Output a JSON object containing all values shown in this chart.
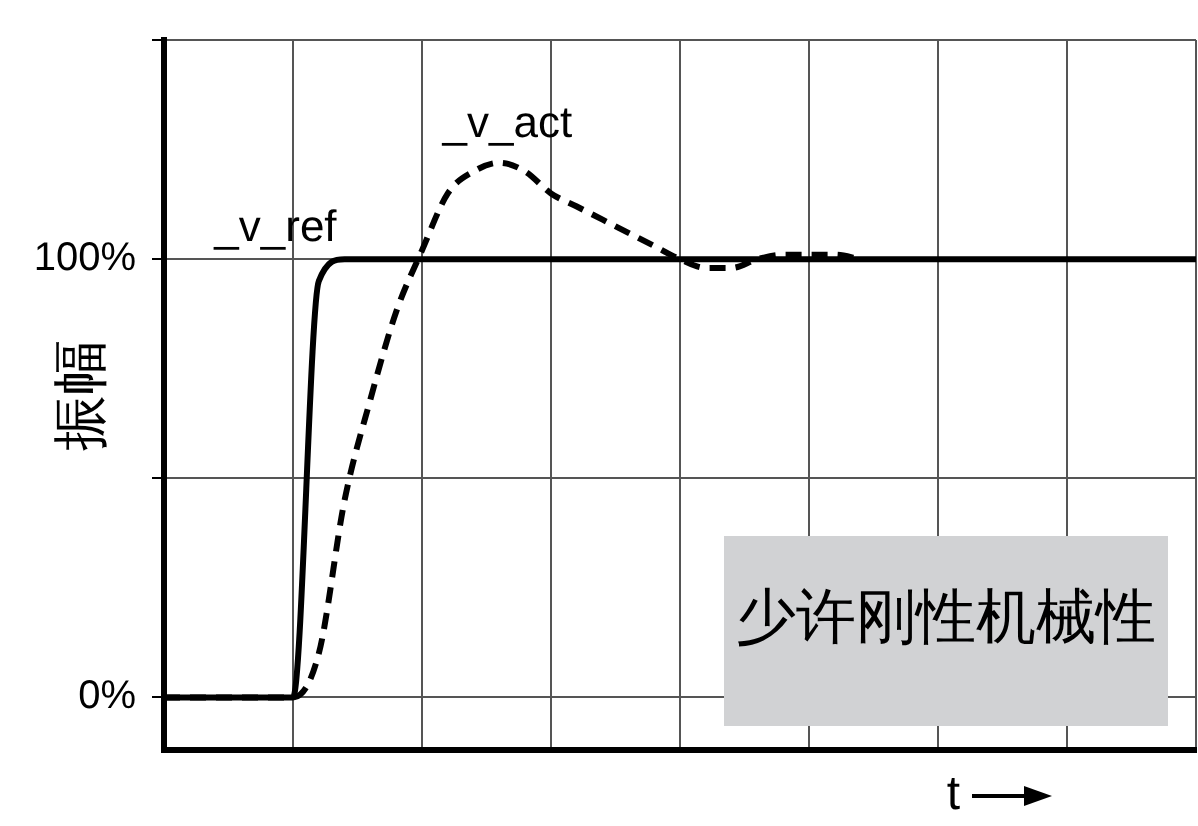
{
  "chart_data": {
    "type": "line",
    "ylabel": "振幅",
    "xlabel": "t",
    "annotations": [
      "少许刚性机械性"
    ],
    "categories": [
      null,
      null,
      null,
      null,
      null,
      null,
      null,
      null,
      null,
      null,
      null,
      null,
      null,
      null,
      null,
      null,
      null,
      null,
      null,
      null,
      null,
      null,
      null,
      null,
      null,
      null,
      null,
      null,
      null,
      null,
      null,
      null,
      null,
      null,
      null,
      null,
      null,
      null,
      null,
      null,
      null
    ],
    "ylim": [
      -12,
      150
    ],
    "yticks": [
      {
        "value": 0,
        "label": "0%"
      },
      {
        "value": 50,
        "label": null
      },
      {
        "value": 100,
        "label": "100%"
      },
      {
        "value": 150,
        "label": null
      }
    ],
    "tick_labels": "y",
    "grid": true,
    "legend": false,
    "marker": "none",
    "series": [
      {
        "name": "_v_ref",
        "color": "#000000",
        "line_style": "solid",
        "values": [
          0,
          0,
          0,
          0,
          0,
          0,
          95,
          100,
          100,
          100,
          100,
          100,
          100,
          100,
          100,
          100,
          100,
          100,
          100,
          100,
          100,
          100,
          100,
          100,
          100,
          100,
          100,
          100,
          100,
          100,
          100,
          100,
          100,
          100,
          100,
          100,
          100,
          100,
          100,
          100,
          100
        ]
      },
      {
        "name": "_v_act",
        "color": "#000000",
        "line_style": "dashed",
        "values": [
          0,
          0,
          0,
          0,
          0,
          0,
          10,
          45,
          68,
          88,
          102,
          115,
          120,
          122,
          120,
          115,
          112,
          109,
          106,
          103,
          100,
          98,
          98,
          100,
          101,
          101,
          101,
          100,
          null,
          null,
          null,
          null,
          null,
          null,
          null,
          null,
          null,
          null,
          null,
          null,
          null
        ]
      }
    ]
  }
}
